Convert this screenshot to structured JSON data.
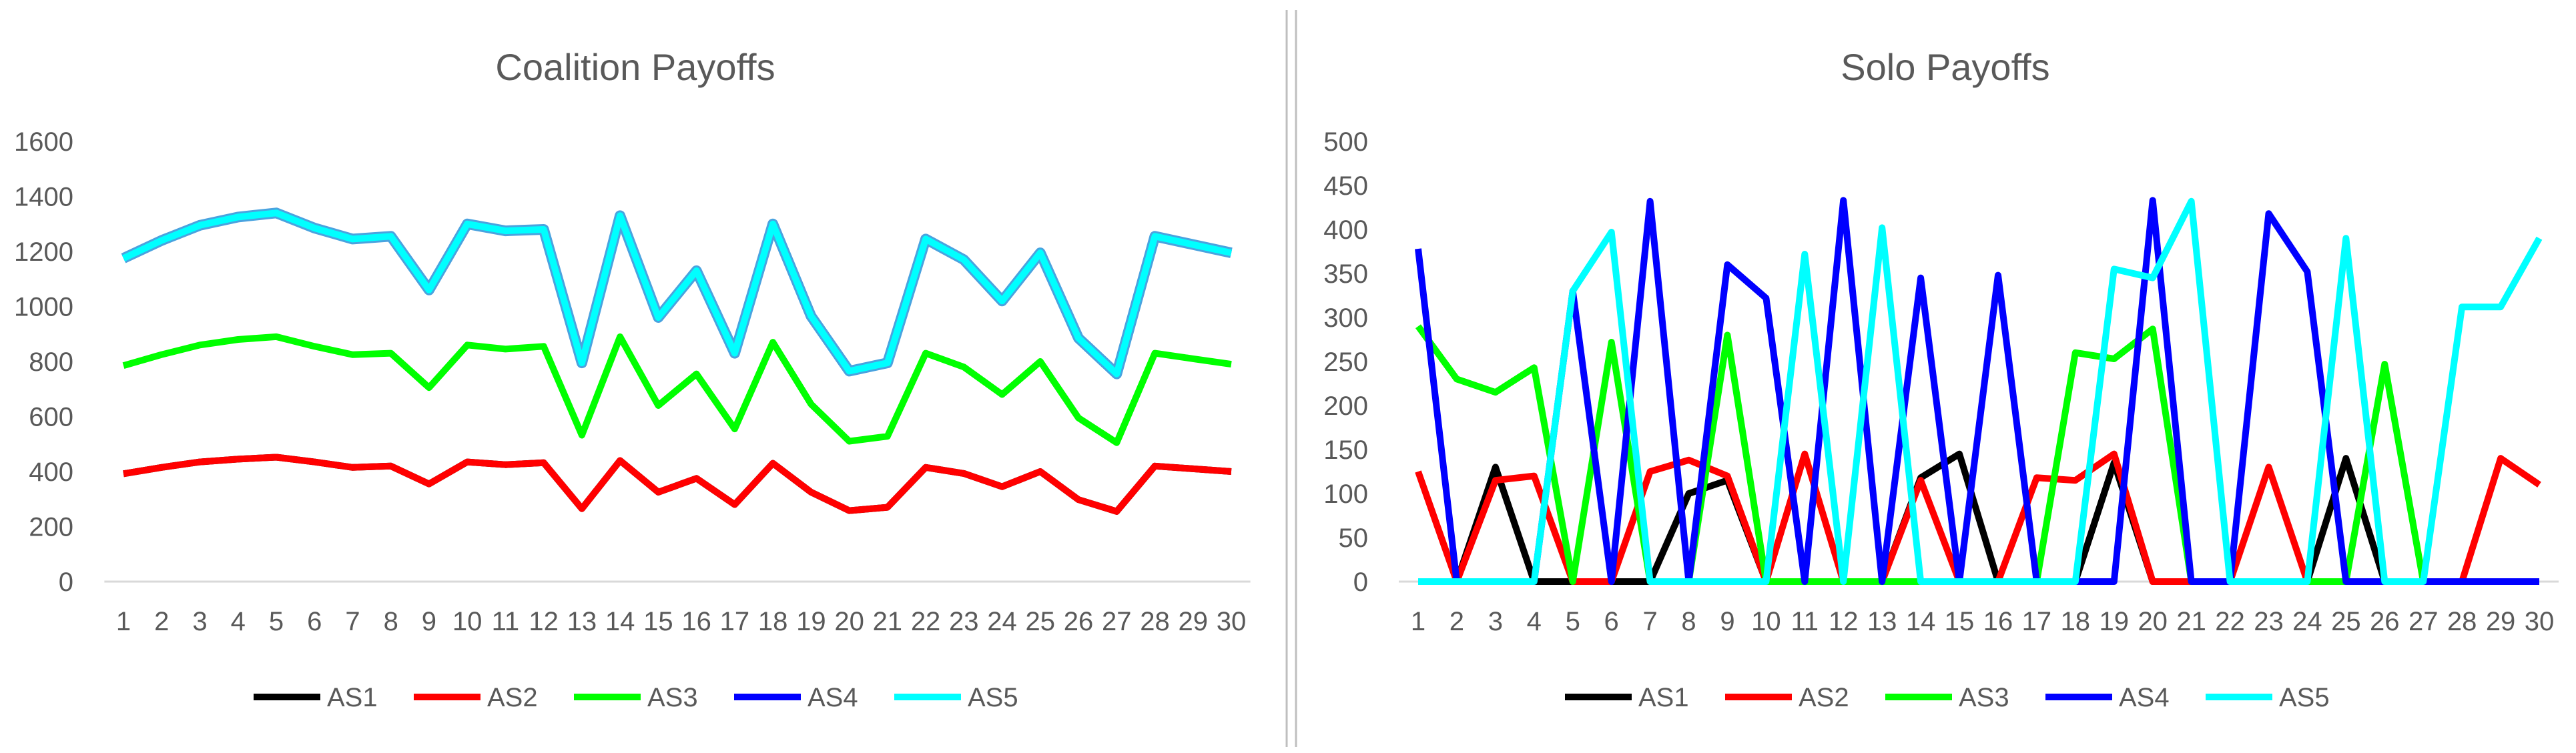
{
  "colors": {
    "AS1": "#000000",
    "AS2": "#ff0000",
    "AS3": "#00ff00",
    "AS4": "#0000ff",
    "AS5": "#00ffff",
    "AS5_outline": "#4aa3df",
    "tick_text": "#595959",
    "title_text": "#595959",
    "gridline": "#d9d9d9",
    "divider": "#bfbfbf"
  },
  "chart_data": [
    {
      "type": "line",
      "title": "Coalition Payoffs",
      "xlabel": "",
      "ylabel": "",
      "categories": [
        "1",
        "2",
        "3",
        "4",
        "5",
        "6",
        "7",
        "8",
        "9",
        "10",
        "11",
        "12",
        "13",
        "14",
        "15",
        "16",
        "17",
        "18",
        "19",
        "20",
        "21",
        "22",
        "23",
        "24",
        "25",
        "26",
        "27",
        "28",
        "29",
        "30"
      ],
      "ylim": [
        0,
        1600
      ],
      "yticks": [
        0,
        200,
        400,
        600,
        800,
        1000,
        1200,
        1400,
        1600
      ],
      "grid": false,
      "legend_position": "bottom",
      "series": [
        {
          "name": "AS1",
          "values": [
            392,
            415,
            435,
            445,
            452,
            435,
            415,
            420,
            355,
            435,
            425,
            432,
            265,
            440,
            325,
            375,
            280,
            430,
            325,
            258,
            270,
            415,
            393,
            345,
            400,
            298,
            255,
            420,
            410,
            400
          ]
        },
        {
          "name": "AS2",
          "values": [
            392,
            415,
            435,
            445,
            452,
            435,
            415,
            420,
            355,
            435,
            425,
            432,
            265,
            440,
            325,
            375,
            280,
            430,
            325,
            258,
            270,
            415,
            393,
            345,
            400,
            298,
            255,
            420,
            410,
            400
          ]
        },
        {
          "name": "AS3",
          "values": [
            785,
            825,
            860,
            880,
            890,
            855,
            825,
            830,
            705,
            860,
            845,
            855,
            532,
            890,
            640,
            755,
            555,
            870,
            645,
            510,
            528,
            830,
            780,
            680,
            800,
            595,
            505,
            830,
            810,
            790
          ]
        },
        {
          "name": "AS4",
          "values": [
            1175,
            1240,
            1295,
            1325,
            1340,
            1285,
            1245,
            1255,
            1060,
            1300,
            1275,
            1280,
            795,
            1330,
            960,
            1130,
            830,
            1300,
            965,
            765,
            795,
            1245,
            1170,
            1020,
            1195,
            885,
            755,
            1255,
            1225,
            1195
          ]
        },
        {
          "name": "AS5",
          "values": [
            1175,
            1240,
            1295,
            1325,
            1340,
            1285,
            1245,
            1255,
            1060,
            1300,
            1275,
            1280,
            795,
            1330,
            960,
            1130,
            830,
            1300,
            965,
            765,
            795,
            1245,
            1170,
            1020,
            1195,
            885,
            755,
            1255,
            1225,
            1195
          ]
        }
      ]
    },
    {
      "type": "line",
      "title": "Solo Payoffs",
      "xlabel": "",
      "ylabel": "",
      "categories": [
        "1",
        "2",
        "3",
        "4",
        "5",
        "6",
        "7",
        "8",
        "9",
        "10",
        "11",
        "12",
        "13",
        "14",
        "15",
        "16",
        "17",
        "18",
        "19",
        "20",
        "21",
        "22",
        "23",
        "24",
        "25",
        "26",
        "27",
        "28",
        "29",
        "30"
      ],
      "ylim": [
        0,
        500
      ],
      "yticks": [
        0,
        50,
        100,
        150,
        200,
        250,
        300,
        350,
        400,
        450,
        500
      ],
      "grid": false,
      "legend_position": "bottom",
      "series": [
        {
          "name": "AS1",
          "values": [
            0,
            0,
            130,
            0,
            0,
            0,
            0,
            100,
            115,
            0,
            0,
            0,
            0,
            118,
            145,
            0,
            0,
            0,
            135,
            0,
            0,
            0,
            0,
            0,
            140,
            0,
            0,
            0,
            0,
            0
          ]
        },
        {
          "name": "AS2",
          "values": [
            125,
            0,
            115,
            120,
            0,
            0,
            125,
            138,
            120,
            0,
            145,
            0,
            0,
            115,
            0,
            0,
            118,
            115,
            145,
            0,
            0,
            0,
            130,
            0,
            0,
            0,
            0,
            0,
            140,
            110
          ]
        },
        {
          "name": "AS3",
          "values": [
            290,
            230,
            215,
            243,
            0,
            272,
            0,
            0,
            280,
            0,
            0,
            0,
            0,
            0,
            0,
            0,
            0,
            260,
            253,
            287,
            0,
            0,
            0,
            0,
            0,
            247,
            0,
            0,
            0,
            0
          ]
        },
        {
          "name": "AS4",
          "values": [
            378,
            0,
            0,
            0,
            330,
            0,
            432,
            0,
            360,
            322,
            0,
            433,
            0,
            345,
            0,
            348,
            0,
            0,
            0,
            433,
            0,
            0,
            418,
            352,
            0,
            0,
            0,
            0,
            0,
            0
          ]
        },
        {
          "name": "AS5",
          "values": [
            0,
            0,
            0,
            0,
            330,
            397,
            0,
            0,
            0,
            0,
            372,
            0,
            402,
            0,
            0,
            0,
            0,
            0,
            355,
            345,
            432,
            0,
            0,
            0,
            390,
            0,
            0,
            312,
            312,
            390
          ]
        }
      ]
    }
  ]
}
